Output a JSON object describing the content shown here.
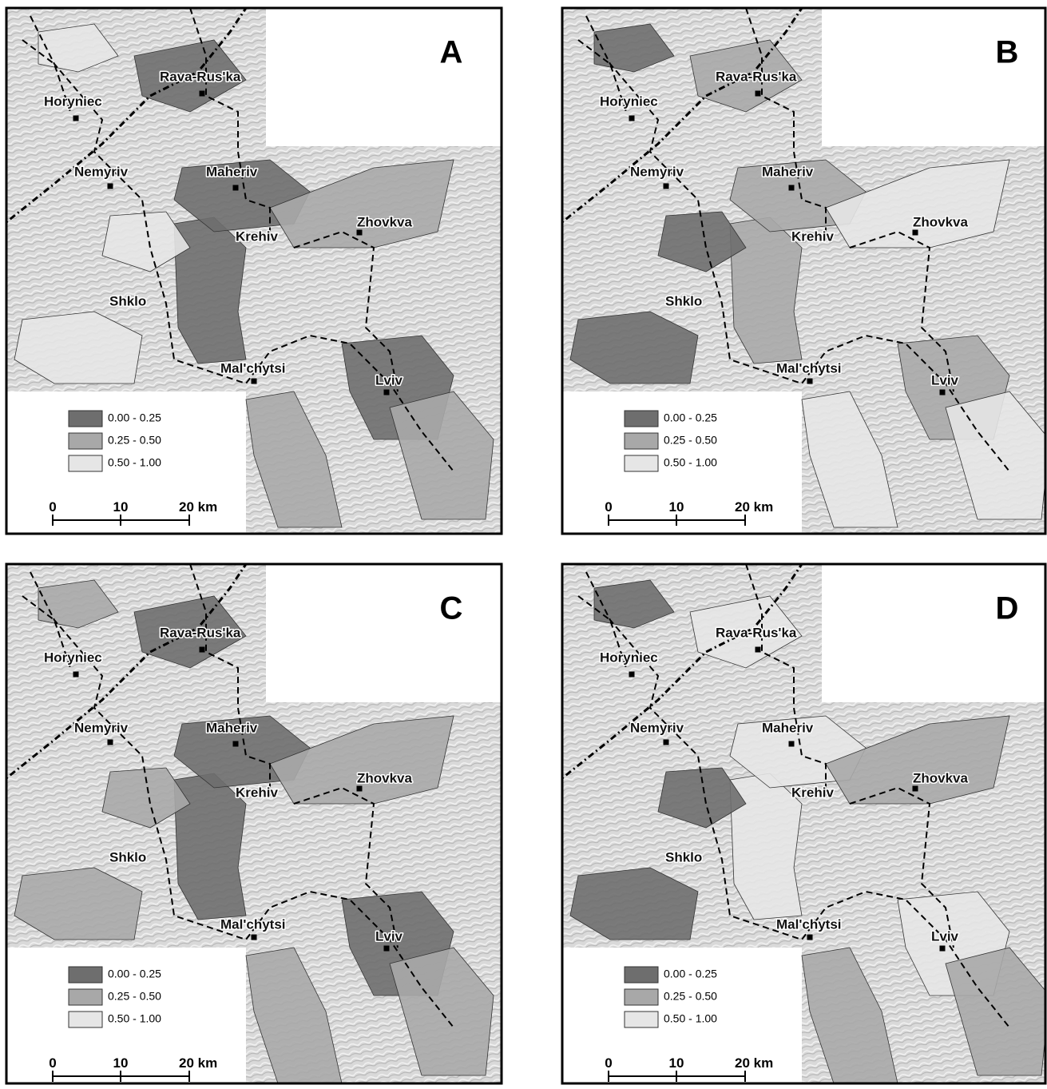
{
  "panels": [
    {
      "letter": "A",
      "places": [
        "Horyniec",
        "Rava-Rus'ka",
        "Nemyriv",
        "Maheriv",
        "Zhovkva",
        "Krehiv",
        "Shklo",
        "Mal'chytsi",
        "Lviv"
      ],
      "legend": [
        "0.00 - 0.25",
        "0.25 - 0.50",
        "0.50 - 1.00"
      ],
      "scale": [
        "0",
        "10",
        "20 km"
      ]
    },
    {
      "letter": "B",
      "places": [
        "Horyniec",
        "Rava-Rus'ka",
        "Nemyriv",
        "Maheriv",
        "Zhovkva",
        "Krehiv",
        "Shklo",
        "Mal'chytsi",
        "Lviv"
      ],
      "legend": [
        "0.00 - 0.25",
        "0.25 - 0.50",
        "0.50 - 1.00"
      ],
      "scale": [
        "0",
        "10",
        "20 km"
      ]
    },
    {
      "letter": "C",
      "places": [
        "Horyniec",
        "Rava-Rus'ka",
        "Nemyriv",
        "Maheriv",
        "Zhovkva",
        "Krehiv",
        "Shklo",
        "Mal'chytsi",
        "Lviv"
      ],
      "legend": [
        "0.00 - 0.25",
        "0.25 - 0.50",
        "0.50 - 1.00"
      ],
      "scale": [
        "0",
        "10",
        "20 km"
      ]
    },
    {
      "letter": "D",
      "places": [
        "Horyniec",
        "Rava-Rus'ka",
        "Nemyriv",
        "Maheriv",
        "Zhovkva",
        "Krehiv",
        "Shklo",
        "Mal'chytsi",
        "Lviv"
      ],
      "legend": [
        "0.00 - 0.25",
        "0.25 - 0.50",
        "0.50 - 1.00"
      ],
      "scale": [
        "0",
        "10",
        "20 km"
      ]
    }
  ]
}
